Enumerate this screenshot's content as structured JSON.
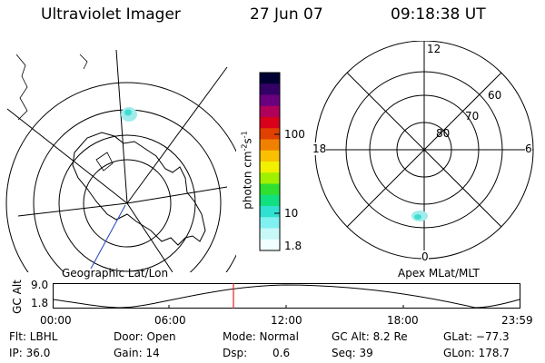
{
  "header": {
    "instrument": "Ultraviolet Imager",
    "date": "27 Jun 07",
    "time": "09:18:38 UT"
  },
  "left_panel": {
    "label": "Geographic Lat/Lon"
  },
  "right_panel": {
    "label": "Apex MLat/MLT",
    "mlt_labels": {
      "top": "12",
      "right": "6",
      "bottom": "0",
      "left": "18"
    },
    "lat_labels": [
      "60",
      "70",
      "80"
    ]
  },
  "colorbar": {
    "unit": "photon cm",
    "unit_exp1": "-2",
    "unit_mid": "s",
    "unit_exp2": "-1",
    "ticks": [
      "100",
      "10",
      "1.8"
    ]
  },
  "altitude_plot": {
    "ylabel": "GC Alt",
    "y_ticks": [
      "9.0",
      "1.8"
    ],
    "x_ticks": [
      "00:00",
      "06:00",
      "12:00",
      "18:00",
      "23:59"
    ],
    "marker_color": "#e02020"
  },
  "info": {
    "flt": "Flt: LBHL",
    "ip": "IP: 36.0",
    "door": "Door: Open",
    "gain": "Gain: 14",
    "mode": "Mode: Normal",
    "dsp_label": "Dsp:",
    "dsp_value": "0.6",
    "gc_alt": "GC Alt: 8.2 Re",
    "seq": "Seq: 39",
    "glat": "GLat: −77.3",
    "glon": "GLon: 178.7"
  },
  "colors": {
    "colorbar": [
      "#000033",
      "#330066",
      "#6a0080",
      "#b0005a",
      "#d8001a",
      "#e04000",
      "#f08000",
      "#f8c000",
      "#f0f000",
      "#a0f000",
      "#30e030",
      "#10e080",
      "#30e0d0",
      "#80f0f0",
      "#c8f8f8",
      "#f0ffff"
    ]
  }
}
